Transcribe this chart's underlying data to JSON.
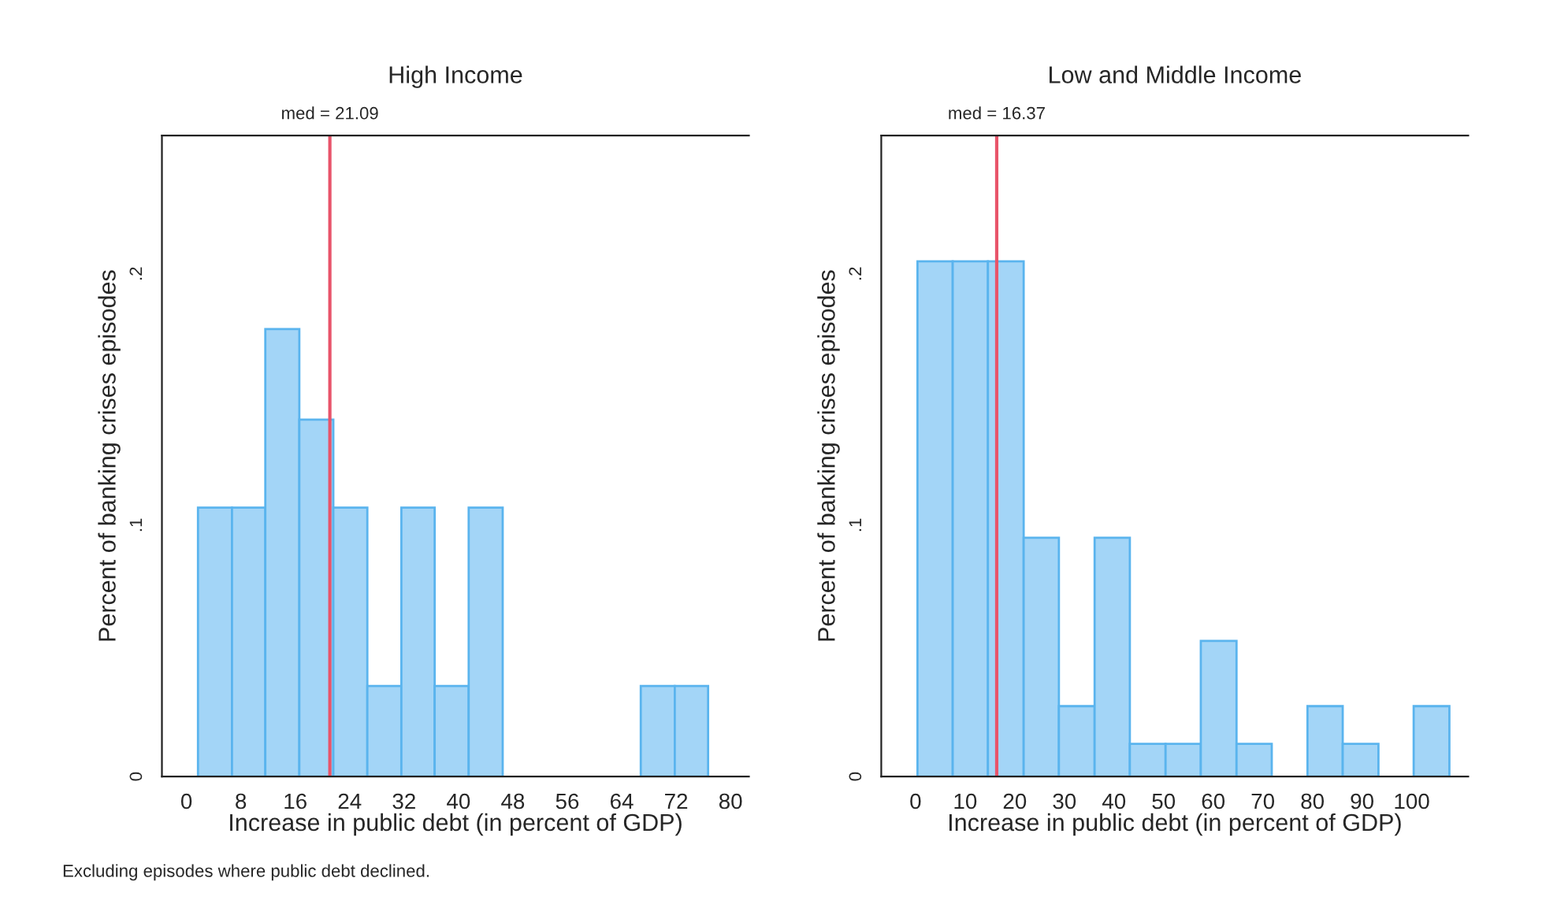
{
  "chart_data": [
    {
      "type": "histogram",
      "title": "High Income",
      "xlabel": "Increase in public debt (in percent of GDP)",
      "ylabel": "Percent of banking crises episodes",
      "bins": [
        1.7,
        6.7,
        11.6,
        16.6,
        21.6,
        26.6,
        31.6,
        36.5,
        41.5,
        46.5,
        66.8,
        71.8,
        76.7
      ],
      "values": [
        0.107,
        0.107,
        0.178,
        0.142,
        0.107,
        0.036,
        0.107,
        0.036,
        0.107,
        0,
        0.036,
        0.036
      ],
      "color": "#a3d5f7",
      "xlim": [
        -3.6,
        82.7
      ],
      "xticks": [
        0,
        8,
        16,
        24,
        32,
        40,
        48,
        56,
        64,
        72,
        80
      ],
      "ylim": [
        0,
        0.255
      ],
      "yticks": [
        {
          "value": 0,
          "label": "0"
        },
        {
          "value": 0.1,
          "label": ".1"
        },
        {
          "value": 0.2,
          "label": ".2"
        }
      ],
      "ref_lines": [
        {
          "axis": "x",
          "value": 21.09,
          "label": "med = 21.09",
          "color": "#e8546a"
        }
      ],
      "grid": false,
      "annotations": [
        "Excluding episodes where public debt declined."
      ]
    },
    {
      "type": "histogram",
      "title": "Low and Middle Income",
      "xlabel": "Increase in public debt (in percent of GDP)",
      "ylabel": "Percent of banking crises episodes",
      "bins": [
        0.4,
        7.5,
        14.6,
        21.8,
        28.9,
        36.1,
        43.2,
        50.4,
        57.5,
        64.7,
        71.8,
        79.0,
        86.1,
        93.3,
        100.4,
        107.6
      ],
      "values": [
        0.205,
        0.205,
        0.205,
        0.095,
        0.028,
        0.095,
        0.013,
        0.013,
        0.054,
        0.013,
        0,
        0.028,
        0.013,
        0,
        0.028
      ],
      "color": "#a3d5f7",
      "xlim": [
        -6.9,
        111.4
      ],
      "xticks": [
        0,
        10,
        20,
        30,
        40,
        50,
        60,
        70,
        80,
        90,
        100
      ],
      "ylim": [
        0,
        0.255
      ],
      "yticks": [
        {
          "value": 0,
          "label": "0"
        },
        {
          "value": 0.1,
          "label": ".1"
        },
        {
          "value": 0.2,
          "label": ".2"
        }
      ],
      "ref_lines": [
        {
          "axis": "x",
          "value": 16.37,
          "label": "med = 16.37",
          "color": "#e8546a"
        }
      ],
      "grid": false
    }
  ]
}
